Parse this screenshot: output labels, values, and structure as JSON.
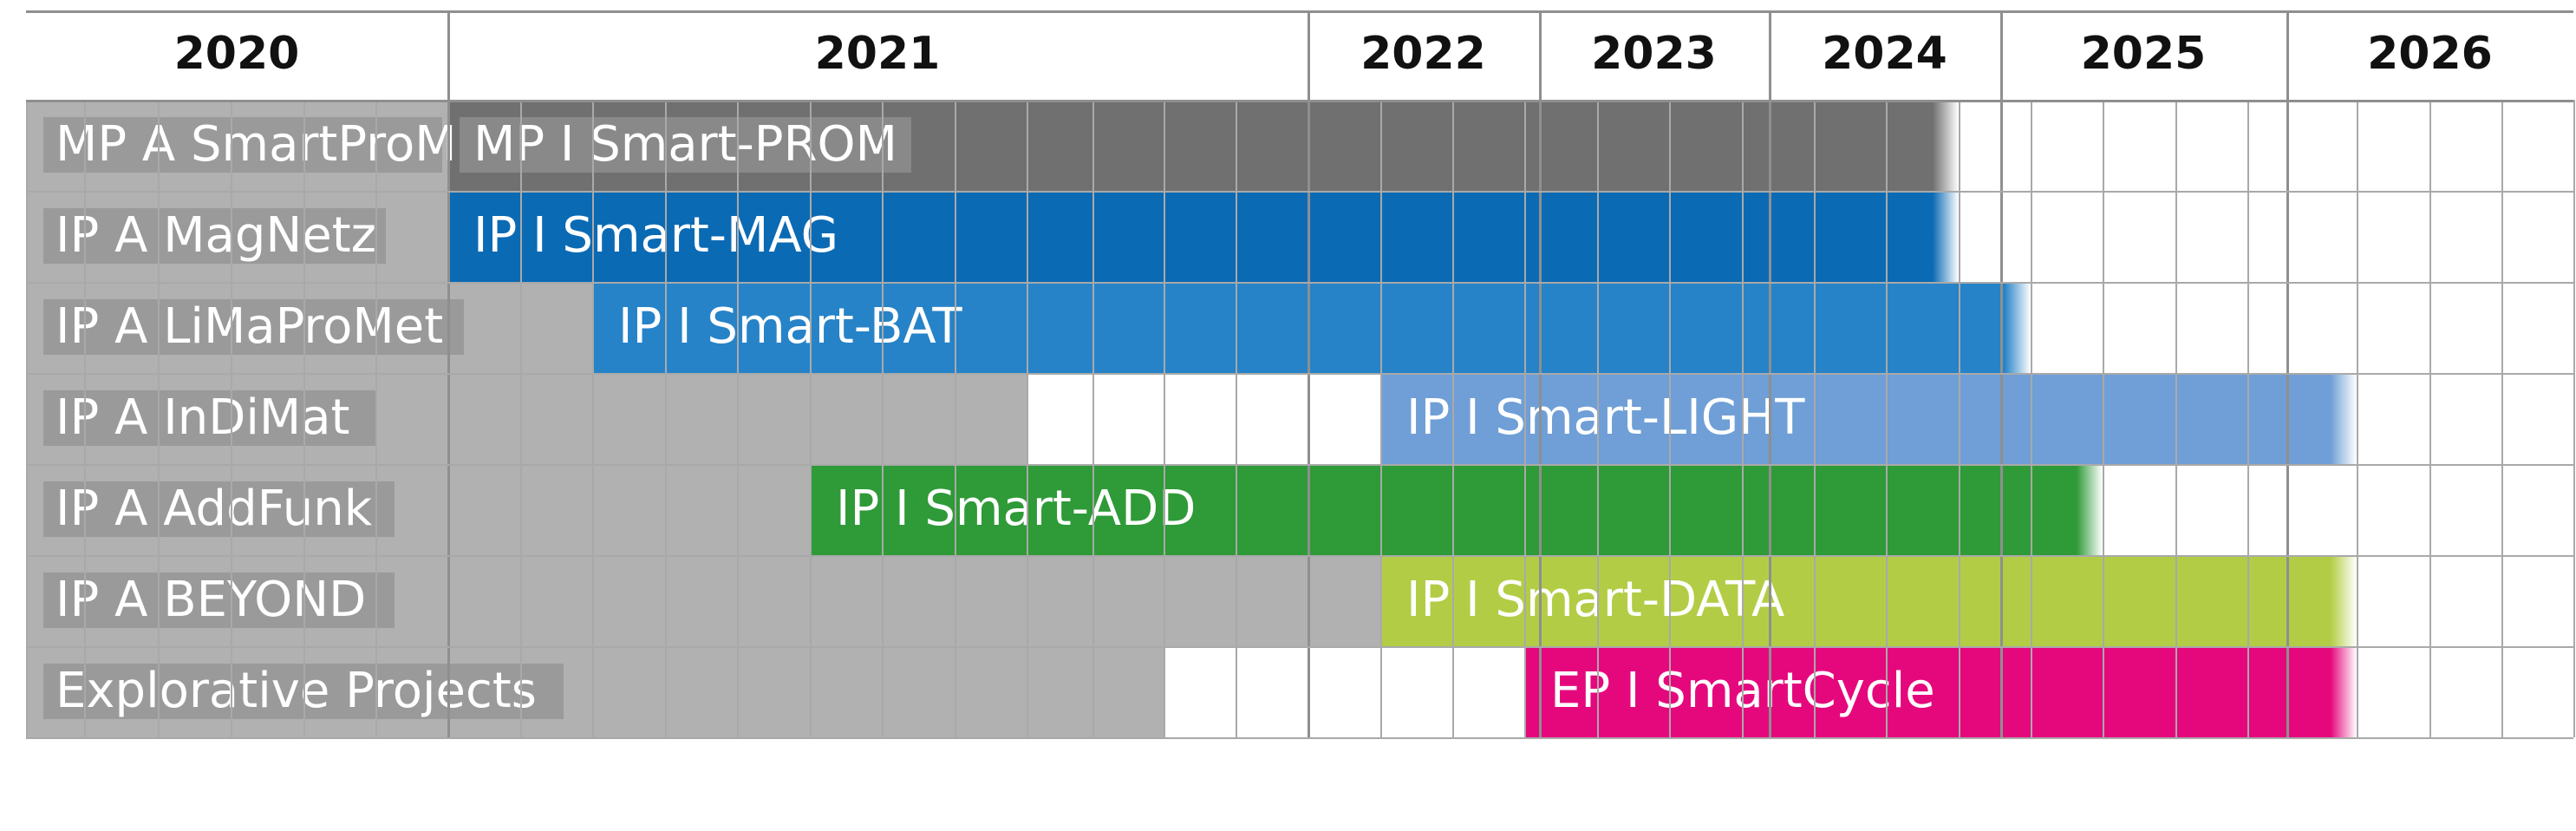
{
  "chart_data": {
    "type": "gantt",
    "years": [
      "2020",
      "2021",
      "2022",
      "2023",
      "2024",
      "2025",
      "2026"
    ],
    "rows": [
      {
        "label": "MP A SmartProM",
        "bar": "MP I Smart-PROM",
        "color": "#707070",
        "start": 6,
        "end": 27
      },
      {
        "label": "IP A MagNetz",
        "bar": "IP I Smart-MAG",
        "color": "#0b6ab4",
        "start": 6,
        "end": 27
      },
      {
        "label": "IP A LiMaProMet",
        "bar": "IP I Smart-BAT",
        "color": "#2683c8",
        "start": 8,
        "end": 28
      },
      {
        "label": "IP A InDiMat",
        "bar": "IP I Smart-LIGHT",
        "color": "#6f9fd6",
        "start": 19,
        "end": 32
      },
      {
        "label": "IP A AddFunk",
        "bar": "IP I Smart-ADD",
        "color": "#2f9a38",
        "start": 11,
        "end": 29
      },
      {
        "label": "IP A BEYOND",
        "bar": "IP I Smart-DATA",
        "color": "#b2cd45",
        "start": 19,
        "end": 32
      },
      {
        "label": "Explorative Projects",
        "bar": "EP I SmartCycle",
        "color": "#e5087d",
        "start": 21,
        "end": 32
      }
    ]
  }
}
